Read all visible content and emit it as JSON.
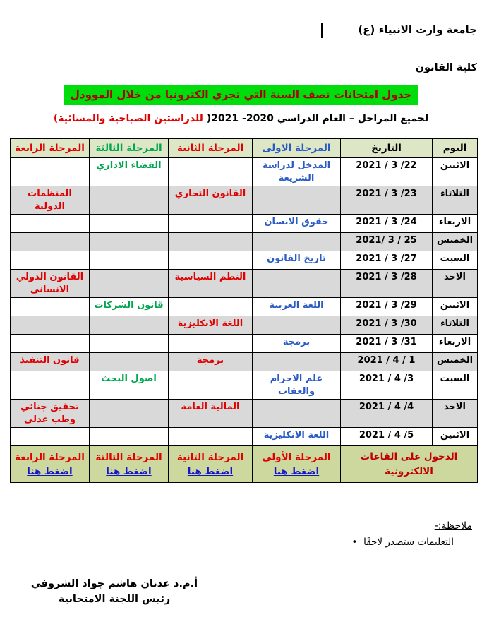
{
  "colors": {
    "header-bg": "#dde7c6",
    "footer-bg": "#ccd89e",
    "shaded-row": "#d9d9d9",
    "border": "#000000",
    "subject-blue": "#2a5bc4",
    "subject-red": "#e10000",
    "subject-green": "#00a550",
    "title-highlight-bg": "#00dd0c",
    "title-red": "#aa0000",
    "accent-dark-red": "#c00000",
    "link-blue": "#1414c8"
  },
  "header": {
    "university": "جامعة وارث الانبياء (ع)",
    "college": "كلية القانون",
    "title_highlight": "جدول امتحانات نصف السنة التي تجري الكترونيا من خلال الموودل",
    "subtitle_black": "لجميع المراحل – العام الدراسي 2020-  2021( ",
    "subtitle_red": "للدراستين الصباحية والمسائية)"
  },
  "table": {
    "headers": [
      {
        "label": "اليوم",
        "color": "black"
      },
      {
        "label": "التاريخ",
        "color": "black"
      },
      {
        "label": "المرحلة الاولى",
        "color": "blue"
      },
      {
        "label": "المرحلة الثانية",
        "color": "red"
      },
      {
        "label": "المرحلة الثالثة",
        "color": "green"
      },
      {
        "label": "المرحلة الرابعة",
        "color": "red"
      }
    ],
    "rows": [
      {
        "day": "الاثنين",
        "date": "22/ 3 / 2021",
        "shaded": false,
        "stage1": {
          "text": "المدخل لدراسة الشريعة",
          "color": "blue"
        },
        "stage2": {
          "text": "",
          "color": "red"
        },
        "stage3": {
          "text": "القضاء الاداري",
          "color": "green"
        },
        "stage4": {
          "text": "",
          "color": "red"
        }
      },
      {
        "day": "الثلاثاء",
        "date": "23/ 3 / 2021",
        "shaded": true,
        "stage1": {
          "text": "",
          "color": "blue"
        },
        "stage2": {
          "text": "القانون التجاري",
          "color": "red"
        },
        "stage3": {
          "text": "",
          "color": "green"
        },
        "stage4": {
          "text": "المنظمات الدولية",
          "color": "red"
        }
      },
      {
        "day": "الاربعاء",
        "date": "24/ 3 / 2021",
        "shaded": false,
        "stage1": {
          "text": "حقوق الانسان",
          "color": "blue"
        },
        "stage2": {
          "text": "",
          "color": "red"
        },
        "stage3": {
          "text": "",
          "color": "green"
        },
        "stage4": {
          "text": "",
          "color": "red"
        }
      },
      {
        "day": "الخميس",
        "date": "25 / 3 /2021",
        "shaded": true,
        "stage1": {
          "text": "",
          "color": "blue"
        },
        "stage2": {
          "text": "",
          "color": "red"
        },
        "stage3": {
          "text": "",
          "color": "green"
        },
        "stage4": {
          "text": "",
          "color": "red"
        }
      },
      {
        "day": "السبت",
        "date": "27/ 3 / 2021",
        "shaded": false,
        "stage1": {
          "text": "تاريخ القانون",
          "color": "blue"
        },
        "stage2": {
          "text": "",
          "color": "red"
        },
        "stage3": {
          "text": "",
          "color": "green"
        },
        "stage4": {
          "text": "",
          "color": "red"
        }
      },
      {
        "day": "الاحد",
        "date": "28/ 3 / 2021",
        "shaded": true,
        "stage1": {
          "text": "",
          "color": "blue"
        },
        "stage2": {
          "text": "النظم السياسية",
          "color": "red"
        },
        "stage3": {
          "text": "",
          "color": "green"
        },
        "stage4": {
          "text": "القانون الدولي الانساني",
          "color": "red"
        }
      },
      {
        "day": "الاثنين",
        "date": "29/ 3 / 2021",
        "shaded": false,
        "stage1": {
          "text": "اللغة العربية",
          "color": "blue"
        },
        "stage2": {
          "text": "",
          "color": "red"
        },
        "stage3": {
          "text": "قانون الشركات",
          "color": "green"
        },
        "stage4": {
          "text": "",
          "color": "red"
        }
      },
      {
        "day": "الثلاثاء",
        "date": "30/ 3 / 2021",
        "shaded": true,
        "stage1": {
          "text": "",
          "color": "blue"
        },
        "stage2": {
          "text": "اللغة الانكليزية",
          "color": "red"
        },
        "stage3": {
          "text": "",
          "color": "green"
        },
        "stage4": {
          "text": "",
          "color": "red"
        }
      },
      {
        "day": "الاربعاء",
        "date": "31/ 3 / 2021",
        "shaded": false,
        "stage1": {
          "text": "برمجة",
          "color": "blue"
        },
        "stage2": {
          "text": "",
          "color": "red"
        },
        "stage3": {
          "text": "",
          "color": "green"
        },
        "stage4": {
          "text": "",
          "color": "red"
        }
      },
      {
        "day": "الخميس",
        "date": "1 / 4 / 2021",
        "shaded": true,
        "stage1": {
          "text": "",
          "color": "blue"
        },
        "stage2": {
          "text": "برمجة",
          "color": "red"
        },
        "stage3": {
          "text": "",
          "color": "green"
        },
        "stage4": {
          "text": "قانون التنفيذ",
          "color": "red"
        }
      },
      {
        "day": "السبت",
        "date": "3/ 4 / 2021",
        "shaded": false,
        "stage1": {
          "text": "علم الاجرام والعقاب",
          "color": "blue"
        },
        "stage2": {
          "text": "",
          "color": "red"
        },
        "stage3": {
          "text": "اصول البحث",
          "color": "green"
        },
        "stage4": {
          "text": "",
          "color": "red"
        }
      },
      {
        "day": "الاحد",
        "date": "4/ 4 / 2021",
        "shaded": true,
        "stage1": {
          "text": "",
          "color": "blue"
        },
        "stage2": {
          "text": "المالية العامة",
          "color": "red"
        },
        "stage3": {
          "text": "",
          "color": "green"
        },
        "stage4": {
          "text": "تحقيق جنائي وطب عدلي",
          "color": "red"
        }
      },
      {
        "day": "الاثنين",
        "date": "5/ 4 / 2021",
        "shaded": false,
        "stage1": {
          "text": "اللغة الانكليزية",
          "color": "blue"
        },
        "stage2": {
          "text": "",
          "color": "red"
        },
        "stage3": {
          "text": "",
          "color": "green"
        },
        "stage4": {
          "text": "",
          "color": "red"
        }
      }
    ],
    "footer": {
      "access_label": "الدخول على القاعات الالكترونية",
      "links": [
        {
          "stage": "المرحلة الأولى",
          "link": "اضغط هنا"
        },
        {
          "stage": "المرحلة الثانية",
          "link": "اضغط هنا"
        },
        {
          "stage": "المرحلة الثالثة",
          "link": "اضغط هنا"
        },
        {
          "stage": "المرحلة الرابعة",
          "link": "اضغط هنا"
        }
      ]
    }
  },
  "notes": {
    "heading": "ملاحظة:-",
    "bullet_glyph": "•",
    "bullet_text": "التعليمات ستصدر لاحقًا"
  },
  "signature": {
    "name": "أ.م.د عدنان هاشم جواد الشروفي",
    "title": "رئيس اللجنة الامتحانية"
  }
}
